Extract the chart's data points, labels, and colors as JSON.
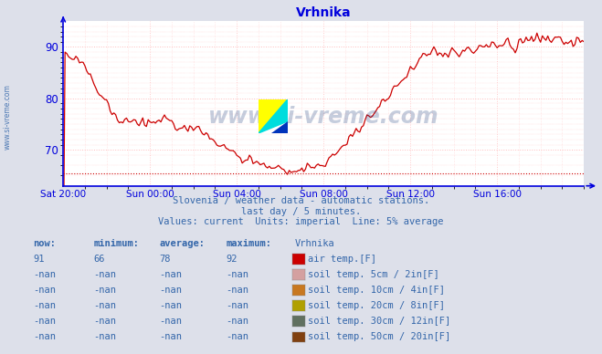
{
  "title": "Vrhnika",
  "bg_color": "#dde0ea",
  "plot_bg_color": "#ffffff",
  "line_color": "#cc0000",
  "grid_color_h": "#ffbbbb",
  "grid_color_v": "#ffcccc",
  "axis_color": "#0000dd",
  "text_color": "#3366aa",
  "subtitle1": "Slovenia / weather data - automatic stations.",
  "subtitle2": "last day / 5 minutes.",
  "subtitle3": "Values: current  Units: imperial  Line: 5% average",
  "watermark": "www.si-vreme.com",
  "sidebar_text": "www.si-vreme.com",
  "x_tick_labels": [
    "Sat 20:00",
    "Sun 00:00",
    "Sun 04:00",
    "Sun 08:00",
    "Sun 12:00",
    "Sun 16:00"
  ],
  "x_tick_positions": [
    0,
    48,
    96,
    144,
    192,
    240
  ],
  "ylim_bottom": 63,
  "ylim_top": 95,
  "yticks": [
    70,
    80,
    90
  ],
  "xlim_left": 0,
  "xlim_right": 288,
  "stats_headers": [
    "now:",
    "minimum:",
    "average:",
    "maximum:",
    "Vrhnika"
  ],
  "stats_row1": [
    "91",
    "66",
    "78",
    "92",
    "air temp.[F]"
  ],
  "stats_row2": [
    "-nan",
    "-nan",
    "-nan",
    "-nan",
    "soil temp. 5cm / 2in[F]"
  ],
  "stats_row3": [
    "-nan",
    "-nan",
    "-nan",
    "-nan",
    "soil temp. 10cm / 4in[F]"
  ],
  "stats_row4": [
    "-nan",
    "-nan",
    "-nan",
    "-nan",
    "soil temp. 20cm / 8in[F]"
  ],
  "stats_row5": [
    "-nan",
    "-nan",
    "-nan",
    "-nan",
    "soil temp. 30cm / 12in[F]"
  ],
  "stats_row6": [
    "-nan",
    "-nan",
    "-nan",
    "-nan",
    "soil temp. 50cm / 20in[F]"
  ],
  "legend_colors": [
    "#cc0000",
    "#d4a0a0",
    "#c87820",
    "#b0a000",
    "#607060",
    "#804010"
  ],
  "logo_yellow": "#ffff00",
  "logo_cyan": "#00dddd",
  "logo_blue": "#0033bb",
  "avg_line_y": 65.5,
  "n_points": 289
}
